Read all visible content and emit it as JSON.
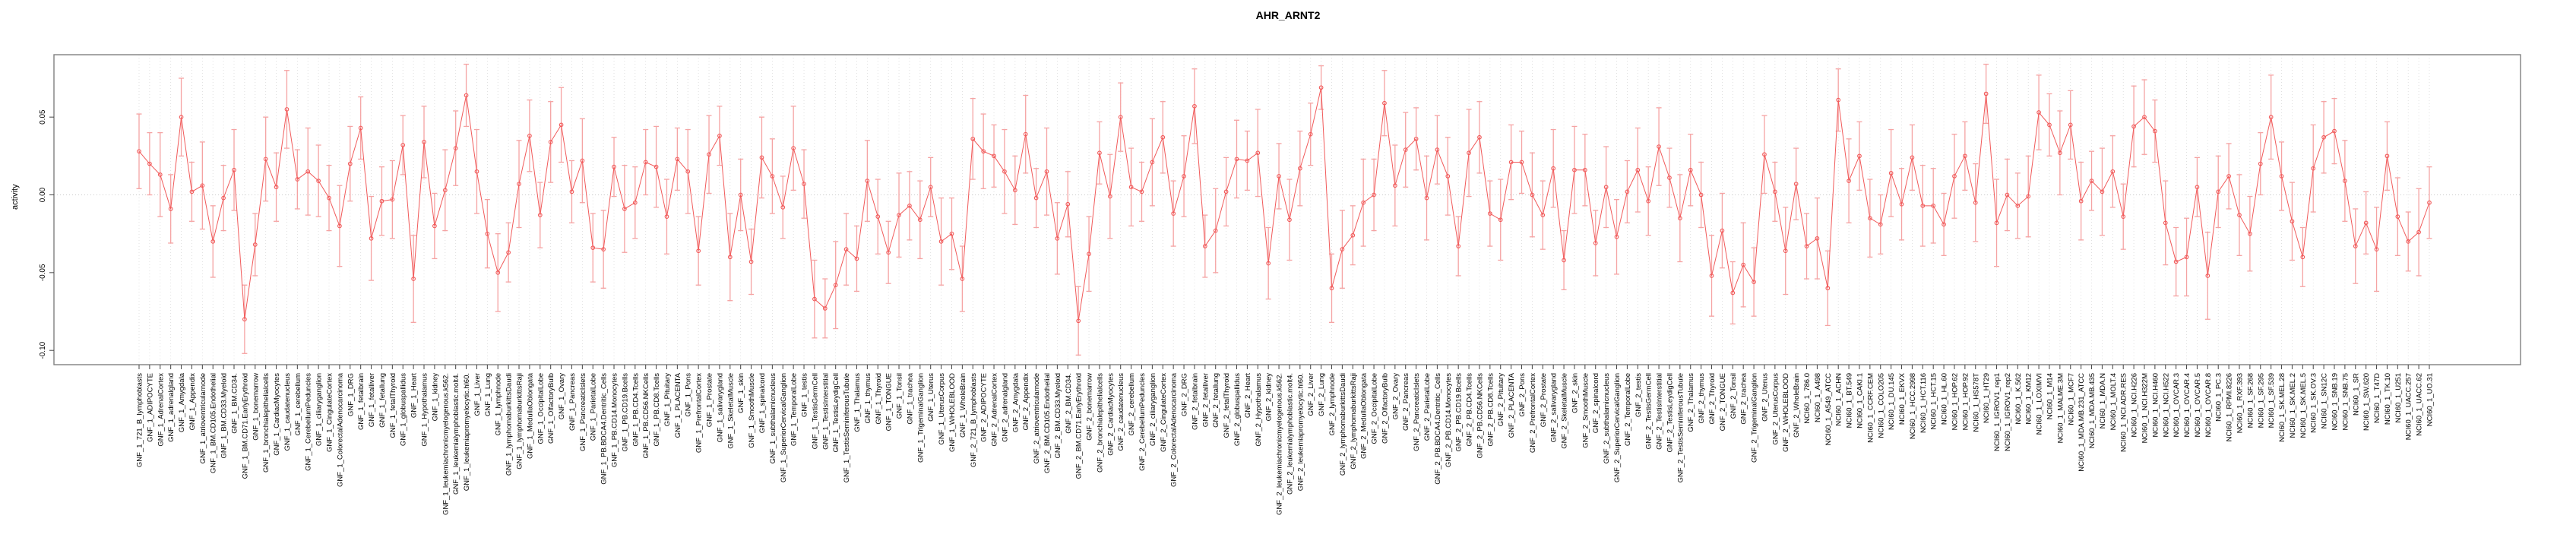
{
  "title": "AHR_ARNT2",
  "ylabel": "activity",
  "colors": {
    "series": "#f15a5a",
    "error_bar": "#f5a3a3",
    "grid": "#d9d9d9",
    "zero_line": "#c9c9c9",
    "frame": "#808080",
    "tick": "#444444",
    "text": "#000000",
    "background": "#ffffff"
  },
  "chart_data": {
    "type": "line",
    "title": "AHR_ARNT2",
    "xlabel": "",
    "ylabel": "activity",
    "ylim": [
      -0.109,
      0.09
    ],
    "yticks": [
      0.05,
      0.0,
      -0.05,
      -0.1
    ],
    "ytick_labels": [
      "0.05",
      "0.00",
      "-0.05",
      "-0.10"
    ],
    "grid": true,
    "legend": false,
    "marker": "open-circle",
    "error_bars": true,
    "categories": [
      "GNF_1_721_B_lymphoblasts",
      "GNF_1_ADIPOCYTE",
      "GNF_1_AdrenalCortex",
      "GNF_1_adrenalgland",
      "GNF_1_Amygdala",
      "GNF_1_Appendix",
      "GNF_1_atrioventricularnode",
      "GNF_1_BM.CD105.Endothelial",
      "GNF_1_BM.CD33.Myeloid",
      "GNF_1_BM.CD34.",
      "GNF_1_BM.CD71.EarlyErythroid",
      "GNF_1_bonemarrow",
      "GNF_1_bronchialepithelialcells",
      "GNF_1_CardiacMyocytes",
      "GNF_1_caudatenucleus",
      "GNF_1_cerebellum",
      "GNF_1_CerebellumPeduncles",
      "GNF_1_ciliaryganglion",
      "GNF_1_CingulateCortex",
      "GNF_1_ColorectalAdenocarcinoma",
      "GNF_1_DRG",
      "GNF_1_fetalbrain",
      "GNF_1_fetalliver",
      "GNF_1_fetallung",
      "GNF_1_fetalThyroid",
      "GNF_1_globuspallidus",
      "GNF_1_Heart",
      "GNF_1_Hypothalamus",
      "GNF_1_kidney",
      "GNF_1_leukemiachronicmyelogenous.k562.",
      "GNF_1_leukemialymphoblastic.molt4.",
      "GNF_1_leukemiapromyelocytic.hl60.",
      "GNF_1_Liver",
      "GNF_1_Lung",
      "GNF_1_lymphnode",
      "GNF_1_lymphomaburkittsDaudi",
      "GNF_1_lymphomaburkittsRaji",
      "GNF_1_MedullaOblongata",
      "GNF_1_OccipitalLobe",
      "GNF_1_OlfactoryBulb",
      "GNF_1_Ovary",
      "GNF_1_Pancreas",
      "GNF_1_PancreaticIslets",
      "GNF_1_ParietalLobe",
      "GNF_1_PB.BDCA4.Dentritic_Cells",
      "GNF_1_PB.CD14.Monocytes",
      "GNF_1_PB.CD19.Bcells",
      "GNF_1_PB.CD4.Tcells",
      "GNF_1_PB.CD56.NKCells",
      "GNF_1_PB.CD8.Tcells",
      "GNF_1_Pituitary",
      "GNF_1_PLACENTA",
      "GNF_1_Pons",
      "GNF_1_PrefrontalCortex",
      "GNF_1_Prostate",
      "GNF_1_salivarygland",
      "GNF_1_SkeletalMuscle",
      "GNF_1_skin",
      "GNF_1_SmoothMuscle",
      "GNF_1_spinalcord",
      "GNF_1_subthalamicnucleus",
      "GNF_1_SuperiorCervicalGanglion",
      "GNF_1_TemporalLobe",
      "GNF_1_testis",
      "GNF_1_TestisGermCell",
      "GNF_1_TestisInterstitial",
      "GNF_1_TestisLeydigCell",
      "GNF_1_TestisSeminiferousTubule",
      "GNF_1_Thalamus",
      "GNF_1_thymus",
      "GNF_1_Thyroid",
      "GNF_1_TONGUE",
      "GNF_1_Tonsil",
      "GNF_1_trachea",
      "GNF_1_TrigeminalGanglion",
      "GNF_1_Uterus",
      "GNF_1_UterusCorpus",
      "GNF_1_WHOLEBLOOD",
      "GNF_1_WholeBrain",
      "GNF_2_721_B_lymphoblasts",
      "GNF_2_ADIPOCYTE",
      "GNF_2_AdrenalCortex",
      "GNF_2_adrenalgland",
      "GNF_2_Amygdala",
      "GNF_2_Appendix",
      "GNF_2_atrioventricularnode",
      "GNF_2_BM.CD105.Endothelial",
      "GNF_2_BM.CD33.Myeloid",
      "GNF_2_BM.CD34.",
      "GNF_2_BM.CD71.EarlyErythroid",
      "GNF_2_bonemarrow",
      "GNF_2_bronchialepithelialcells",
      "GNF_2_CardiacMyocytes",
      "GNF_2_caudatenucleus",
      "GNF_2_cerebellum",
      "GNF_2_CerebellumPeduncles",
      "GNF_2_ciliaryganglion",
      "GNF_2_CingulateCortex",
      "GNF_2_ColorectalAdenocarcinoma",
      "GNF_2_DRG",
      "GNF_2_fetalbrain",
      "GNF_2_fetalliver",
      "GNF_2_fetallung",
      "GNF_2_fetalThyroid",
      "GNF_2_globuspallidus",
      "GNF_2_Heart",
      "GNF_2_Hypothalamus",
      "GNF_2_kidney",
      "GNF_2_leukemiachronicmyelogenous.k562.",
      "GNF_2_leukemialymphoblastic.molt4.",
      "GNF_2_leukemiapromyelocytic.hl60.",
      "GNF_2_Liver",
      "GNF_2_Lung",
      "GNF_2_lymphnode",
      "GNF_2_lymphomaburkittsDaudi",
      "GNF_2_lymphomaburkittsRaji",
      "GNF_2_MedullaOblongata",
      "GNF_2_OccipitalLobe",
      "GNF_2_OlfactoryBulb",
      "GNF_2_Ovary",
      "GNF_2_Pancreas",
      "GNF_2_PancreaticIslets",
      "GNF_2_ParietalLobe",
      "GNF_2_PB.BDCA4.Dentritic_Cells",
      "GNF_2_PB.CD14.Monocytes",
      "GNF_2_PB.CD19.Bcells",
      "GNF_2_PB.CD4.Tcells",
      "GNF_2_PB.CD56.NKCells",
      "GNF_2_PB.CD8.Tcells",
      "GNF_2_Pituitary",
      "GNF_2_PLACENTA",
      "GNF_2_Pons",
      "GNF_2_PrefrontalCortex",
      "GNF_2_Prostate",
      "GNF_2_salivarygland",
      "GNF_2_SkeletalMuscle",
      "GNF_2_skin",
      "GNF_2_SmoothMuscle",
      "GNF_2_spinalcord",
      "GNF_2_subthalamicnucleus",
      "GNF_2_SuperiorCervicalGanglion",
      "GNF_2_TemporalLobe",
      "GNF_2_testis",
      "GNF_2_TestisGermCell",
      "GNF_2_TestisInterstitial",
      "GNF_2_TestisLeydigCell",
      "GNF_2_TestisSeminiferousTubule",
      "GNF_2_Thalamus",
      "GNF_2_thymus",
      "GNF_2_Thyroid",
      "GNF_2_TONGUE",
      "GNF_2_Tonsil",
      "GNF_2_trachea",
      "GNF_2_TrigeminalGanglion",
      "GNF_2_Uterus",
      "GNF_2_UterusCorpus",
      "GNF_2_WHOLEBLOOD",
      "GNF_2_WholeBrain",
      "NCI60_1_786.0",
      "NCI60_1_A498",
      "NCI60_1_A549_ATCC",
      "NCI60_1_ACHN",
      "NCI60_1_BT.549",
      "NCI60_1_CAKI.1",
      "NCI60_1_CCRF.CEM",
      "NCI60_1_COLO205",
      "NCI60_1_DU.145",
      "NCI60_1_EKVX",
      "NCI60_1_HCC.2998",
      "NCI60_1_HCT.116",
      "NCI60_1_HCT.15",
      "NCI60_1_HL.60",
      "NCI60_1_HOP.62",
      "NCI60_1_HOP.92",
      "NCI60_1_HS578T",
      "NCI60_1_HT29",
      "NCI60_1_IGROV1_rep1",
      "NCI60_1_IGROV1_rep2",
      "NCI60_1_K.562",
      "NCI60_1_KM12",
      "NCI60_1_LOXIMVI",
      "NCI60_1_M14",
      "NCI60_1_MALME.3M",
      "NCI60_1_MCF7",
      "NCI60_1_MDA.MB.231_ATCC",
      "NCI60_1_MDA.MB.435",
      "NCI60_1_MDA.N",
      "NCI60_1_MOLT.4",
      "NCI60_1_NCI.ADR.RES",
      "NCI60_1_NCI.H226",
      "NCI60_1_NCI.H322M",
      "NCI60_1_NCI.H460",
      "NCI60_1_NCI.H522",
      "NCI60_1_OVCAR.3",
      "NCI60_1_OVCAR.4",
      "NCI60_1_OVCAR.5",
      "NCI60_1_OVCAR.8",
      "NCI60_1_PC.3",
      "NCI60_1_RPMI.8226",
      "NCI60_1_RXF.393",
      "NCI60_1_SF.268",
      "NCI60_1_SF.295",
      "NCI60_1_SF.539",
      "NCI60_1_SK.MEL.28",
      "NCI60_1_SK.MEL.2",
      "NCI60_1_SK.MEL.5",
      "NCI60_1_SK.OV.3",
      "NCI60_1_SN12C",
      "NCI60_1_SNB.19",
      "NCI60_1_SNB.75",
      "NCI60_1_SR",
      "NCI60_1_SW.620",
      "NCI60_1_T47D",
      "NCI60_1_TK.10",
      "NCI60_1_U251",
      "NCI60_1_UACC.257",
      "NCI60_1_UACC.62",
      "NCI60_1_UO.31"
    ],
    "values": [
      0.028,
      0.02,
      0.013,
      -0.009,
      0.05,
      0.002,
      0.006,
      -0.03,
      -0.002,
      0.016,
      -0.08,
      -0.032,
      0.023,
      0.005,
      0.055,
      0.01,
      0.015,
      0.009,
      -0.002,
      -0.02,
      0.02,
      0.043,
      -0.028,
      -0.004,
      -0.003,
      0.032,
      -0.054,
      0.034,
      -0.02,
      0.003,
      0.03,
      0.064,
      0.015,
      -0.025,
      -0.05,
      -0.037,
      0.007,
      0.038,
      -0.013,
      0.034,
      0.045,
      0.002,
      0.022,
      -0.034,
      -0.035,
      0.018,
      -0.009,
      -0.005,
      0.021,
      0.018,
      -0.014,
      0.023,
      0.015,
      -0.036,
      0.026,
      0.038,
      -0.04,
      0.0,
      -0.043,
      0.024,
      0.012,
      -0.008,
      0.03,
      0.007,
      -0.067,
      -0.073,
      -0.058,
      -0.035,
      -0.041,
      0.009,
      -0.014,
      -0.037,
      -0.013,
      -0.007,
      -0.016,
      0.005,
      -0.03,
      -0.025,
      -0.054,
      0.036,
      0.028,
      0.025,
      0.015,
      0.003,
      0.039,
      -0.002,
      0.015,
      -0.028,
      -0.006,
      -0.081,
      -0.038,
      0.027,
      -0.001,
      0.05,
      0.005,
      0.002,
      0.021,
      0.037,
      -0.012,
      0.012,
      0.057,
      -0.033,
      -0.023,
      0.002,
      0.023,
      0.022,
      0.027,
      -0.044,
      0.012,
      -0.016,
      0.017,
      0.039,
      0.069,
      -0.06,
      -0.035,
      -0.026,
      -0.005,
      0.0,
      0.059,
      0.006,
      0.029,
      0.036,
      -0.002,
      0.029,
      0.012,
      -0.033,
      0.027,
      0.037,
      -0.012,
      -0.016,
      0.021,
      0.021,
      0.0,
      -0.013,
      0.017,
      -0.042,
      0.016,
      0.016,
      -0.031,
      0.005,
      -0.027,
      0.002,
      0.016,
      -0.004,
      0.031,
      0.011,
      -0.015,
      0.016,
      0.0,
      -0.052,
      -0.023,
      -0.063,
      -0.045,
      -0.056,
      0.026,
      0.002,
      -0.036,
      0.007,
      -0.033,
      -0.028,
      -0.06,
      0.061,
      0.009,
      0.025,
      -0.015,
      -0.019,
      0.014,
      -0.006,
      0.024,
      -0.007,
      -0.007,
      -0.019,
      0.012,
      0.025,
      -0.005,
      0.065,
      -0.018,
      0.0,
      -0.007,
      -0.001,
      0.053,
      0.045,
      0.027,
      0.045,
      -0.004,
      0.009,
      0.002,
      0.015,
      -0.014,
      0.044,
      0.05,
      0.041,
      -0.018,
      -0.043,
      -0.04,
      0.005,
      -0.052,
      0.002,
      0.012,
      -0.013,
      -0.025,
      0.02,
      0.05,
      0.012,
      -0.017,
      -0.04,
      0.017,
      0.037,
      0.041,
      0.009,
      -0.033,
      -0.018,
      -0.035,
      0.025,
      -0.014,
      -0.03,
      -0.024,
      -0.005
    ],
    "errors": [
      0.024,
      0.02,
      0.027,
      0.022,
      0.025,
      0.019,
      0.028,
      0.023,
      0.021,
      0.026,
      0.022,
      0.02,
      0.027,
      0.022,
      0.025,
      0.019,
      0.028,
      0.023,
      0.021,
      0.026,
      0.024,
      0.02,
      0.027,
      0.022,
      0.025,
      0.019,
      0.028,
      0.023,
      0.021,
      0.026,
      0.024,
      0.02,
      0.027,
      0.022,
      0.025,
      0.019,
      0.028,
      0.023,
      0.021,
      0.026,
      0.024,
      0.02,
      0.027,
      0.022,
      0.025,
      0.019,
      0.028,
      0.023,
      0.021,
      0.026,
      0.024,
      0.02,
      0.027,
      0.022,
      0.025,
      0.019,
      0.028,
      0.023,
      0.021,
      0.026,
      0.024,
      0.02,
      0.027,
      0.022,
      0.025,
      0.019,
      0.028,
      0.023,
      0.021,
      0.026,
      0.024,
      0.02,
      0.027,
      0.022,
      0.025,
      0.019,
      0.028,
      0.023,
      0.021,
      0.026,
      0.024,
      0.02,
      0.027,
      0.022,
      0.025,
      0.019,
      0.028,
      0.023,
      0.021,
      0.022,
      0.024,
      0.02,
      0.027,
      0.022,
      0.025,
      0.019,
      0.028,
      0.023,
      0.021,
      0.026,
      0.024,
      0.02,
      0.027,
      0.022,
      0.025,
      0.019,
      0.028,
      0.023,
      0.021,
      0.026,
      0.024,
      0.02,
      0.014,
      0.022,
      0.025,
      0.019,
      0.028,
      0.023,
      0.021,
      0.026,
      0.024,
      0.02,
      0.027,
      0.022,
      0.025,
      0.019,
      0.028,
      0.023,
      0.021,
      0.026,
      0.024,
      0.02,
      0.027,
      0.022,
      0.025,
      0.019,
      0.028,
      0.023,
      0.021,
      0.026,
      0.024,
      0.02,
      0.027,
      0.022,
      0.025,
      0.019,
      0.028,
      0.023,
      0.021,
      0.026,
      0.024,
      0.02,
      0.027,
      0.022,
      0.025,
      0.019,
      0.028,
      0.023,
      0.021,
      0.026,
      0.024,
      0.02,
      0.027,
      0.022,
      0.025,
      0.019,
      0.028,
      0.023,
      0.021,
      0.026,
      0.024,
      0.02,
      0.027,
      0.022,
      0.025,
      0.019,
      0.028,
      0.023,
      0.021,
      0.026,
      0.024,
      0.02,
      0.027,
      0.022,
      0.025,
      0.019,
      0.028,
      0.023,
      0.021,
      0.026,
      0.024,
      0.02,
      0.027,
      0.022,
      0.025,
      0.019,
      0.028,
      0.023,
      0.021,
      0.026,
      0.024,
      0.02,
      0.027,
      0.022,
      0.025,
      0.019,
      0.028,
      0.023,
      0.021,
      0.026,
      0.024,
      0.02,
      0.027,
      0.022,
      0.025,
      0.019,
      0.028,
      0.023
    ]
  }
}
